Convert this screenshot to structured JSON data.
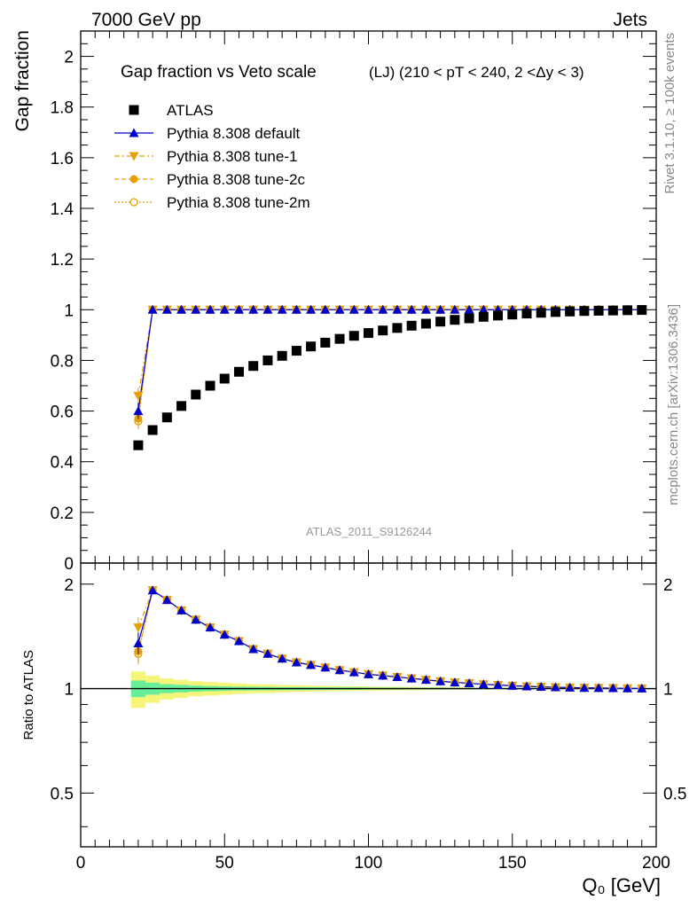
{
  "header": {
    "left": "7000 GeV pp",
    "right": "Jets"
  },
  "side_labels": {
    "rivet": "Rivet 3.1.10, ≥ 100k events",
    "mcplots": "mcplots.cern.ch [arXiv:1306.3436]"
  },
  "colors": {
    "data": "#000000",
    "default": "#0000cc",
    "tune": "#e69f00",
    "band_inner": "#66ee99",
    "band_outer": "#f5f57a"
  },
  "chart_data": [
    {
      "type": "scatter",
      "title": "Gap fraction vs Veto scale",
      "subtitle": "(LJ) (210 < pT < 240, 2 <Δy < 3)",
      "ylabel": "Gap fraction",
      "xlim": [
        0,
        200
      ],
      "ylim": [
        0,
        2.1
      ],
      "yticks": [
        "0",
        "0.2",
        "0.4",
        "0.6",
        "0.8",
        "1",
        "1.2",
        "1.4",
        "1.6",
        "1.8",
        "2"
      ],
      "watermark": "ATLAS_2011_S9126244",
      "x": [
        20,
        25,
        30,
        35,
        40,
        45,
        50,
        55,
        60,
        65,
        70,
        75,
        80,
        85,
        90,
        95,
        100,
        105,
        110,
        115,
        120,
        125,
        130,
        135,
        140,
        145,
        150,
        155,
        160,
        165,
        170,
        175,
        180,
        185,
        190,
        195
      ],
      "series": [
        {
          "name": "ATLAS",
          "key": "atlas",
          "values": [
            0.465,
            0.525,
            0.575,
            0.62,
            0.665,
            0.7,
            0.728,
            0.755,
            0.778,
            0.8,
            0.818,
            0.838,
            0.855,
            0.87,
            0.885,
            0.897,
            0.908,
            0.918,
            0.928,
            0.937,
            0.945,
            0.953,
            0.96,
            0.966,
            0.972,
            0.977,
            0.981,
            0.985,
            0.988,
            0.991,
            0.993,
            0.995,
            0.996,
            0.997,
            0.998,
            0.999
          ]
        },
        {
          "name": "Pythia 8.308 default",
          "key": "default",
          "values": [
            0.6,
            1.0,
            1.0,
            1.0,
            1.0,
            1.0,
            1.0,
            1.0,
            1.0,
            1.0,
            1.0,
            1.0,
            1.0,
            1.0,
            1.0,
            1.0,
            1.0,
            1.0,
            1.0,
            1.0,
            1.0,
            1.0,
            1.0,
            1.0,
            1.0,
            1.0,
            1.0,
            1.0,
            1.0,
            1.0,
            1.0,
            1.0,
            1.0,
            1.0,
            1.0,
            1.0
          ]
        },
        {
          "name": "Pythia 8.308 tune-1",
          "key": "tune1",
          "values": [
            0.66,
            1.0,
            1.0,
            1.0,
            1.0,
            1.0,
            1.0,
            1.0,
            1.0,
            1.0,
            1.0,
            1.0,
            1.0,
            1.0,
            1.0,
            1.0,
            1.0,
            1.0,
            1.0,
            1.0,
            1.0,
            1.0,
            1.0,
            1.0,
            1.0,
            1.0,
            1.0,
            1.0,
            1.0,
            1.0,
            1.0,
            1.0,
            1.0,
            1.0,
            1.0,
            1.0
          ]
        },
        {
          "name": "Pythia 8.308 tune-2c",
          "key": "tune2c",
          "values": [
            0.57,
            1.0,
            1.0,
            1.0,
            1.0,
            1.0,
            1.0,
            1.0,
            1.0,
            1.0,
            1.0,
            1.0,
            1.0,
            1.0,
            1.0,
            1.0,
            1.0,
            1.0,
            1.0,
            1.0,
            1.0,
            1.0,
            1.0,
            1.0,
            1.0,
            1.0,
            1.0,
            1.0,
            1.0,
            1.0,
            1.0,
            1.0,
            1.0,
            1.0,
            1.0,
            1.0
          ]
        },
        {
          "name": "Pythia 8.308 tune-2m",
          "key": "tune2m",
          "values": [
            0.56,
            1.0,
            1.0,
            1.0,
            1.0,
            1.0,
            1.0,
            1.0,
            1.0,
            1.0,
            1.0,
            1.0,
            1.0,
            1.0,
            1.0,
            1.0,
            1.0,
            1.0,
            1.0,
            1.0,
            1.0,
            1.0,
            1.0,
            1.0,
            1.0,
            1.0,
            1.0,
            1.0,
            1.0,
            1.0,
            1.0,
            1.0,
            1.0,
            1.0,
            1.0,
            1.0
          ]
        }
      ],
      "legend_position": "top-left"
    },
    {
      "type": "scatter",
      "ylabel": "Ratio to ATLAS",
      "xlabel": "Q₀ [GeV]",
      "xlim": [
        0,
        200
      ],
      "ylim": [
        0.35,
        2.3
      ],
      "yscale": "log",
      "yticks": [
        "0.5",
        "1",
        "2"
      ],
      "xticks": [
        "0",
        "50",
        "100",
        "150",
        "200"
      ],
      "reference_line": 1,
      "band_inner": [
        0.055,
        0.04,
        0.03,
        0.025,
        0.02,
        0.017,
        0.015,
        0.013,
        0.012,
        0.011,
        0.01,
        0.01,
        0.009,
        0.009,
        0.008,
        0.008,
        0.007,
        0.007,
        0.007,
        0.006,
        0.006,
        0.006,
        0.005,
        0.005,
        0.005,
        0.004,
        0.004,
        0.004,
        0.004,
        0.003,
        0.003,
        0.003,
        0.003,
        0.003,
        0.003,
        0.003
      ],
      "band_outer": [
        0.12,
        0.09,
        0.07,
        0.06,
        0.05,
        0.045,
        0.04,
        0.035,
        0.03,
        0.028,
        0.025,
        0.022,
        0.02,
        0.018,
        0.017,
        0.016,
        0.014,
        0.013,
        0.012,
        0.011,
        0.01,
        0.009,
        0.008,
        0.008,
        0.007,
        0.006,
        0.006,
        0.005,
        0.005,
        0.005,
        0.004,
        0.004,
        0.004,
        0.004,
        0.003,
        0.003
      ],
      "series": [
        {
          "name": "Pythia 8.308 default",
          "key": "default",
          "values": [
            1.35,
            1.92,
            1.8,
            1.68,
            1.58,
            1.5,
            1.43,
            1.37,
            1.3,
            1.26,
            1.22,
            1.19,
            1.17,
            1.15,
            1.13,
            1.115,
            1.1,
            1.09,
            1.08,
            1.07,
            1.06,
            1.05,
            1.042,
            1.036,
            1.029,
            1.024,
            1.019,
            1.015,
            1.012,
            1.009,
            1.007,
            1.005,
            1.004,
            1.003,
            1.002,
            1.001
          ]
        },
        {
          "name": "Pythia 8.308 tune-1",
          "key": "tune1",
          "values": [
            1.5,
            1.92,
            1.8,
            1.68,
            1.58,
            1.5,
            1.43,
            1.37,
            1.3,
            1.26,
            1.22,
            1.19,
            1.17,
            1.15,
            1.13,
            1.115,
            1.1,
            1.09,
            1.08,
            1.07,
            1.06,
            1.05,
            1.042,
            1.036,
            1.029,
            1.024,
            1.019,
            1.015,
            1.012,
            1.009,
            1.007,
            1.005,
            1.004,
            1.003,
            1.002,
            1.001
          ]
        },
        {
          "name": "Pythia 8.308 tune-2c",
          "key": "tune2c",
          "values": [
            1.28,
            1.92,
            1.8,
            1.68,
            1.58,
            1.5,
            1.43,
            1.37,
            1.3,
            1.26,
            1.22,
            1.19,
            1.17,
            1.15,
            1.13,
            1.115,
            1.1,
            1.09,
            1.08,
            1.07,
            1.06,
            1.05,
            1.042,
            1.036,
            1.029,
            1.024,
            1.019,
            1.015,
            1.012,
            1.009,
            1.007,
            1.005,
            1.004,
            1.003,
            1.002,
            1.001
          ]
        },
        {
          "name": "Pythia 8.308 tune-2m",
          "key": "tune2m",
          "values": [
            1.26,
            1.92,
            1.8,
            1.68,
            1.58,
            1.5,
            1.43,
            1.37,
            1.3,
            1.26,
            1.22,
            1.19,
            1.17,
            1.15,
            1.13,
            1.115,
            1.1,
            1.09,
            1.08,
            1.07,
            1.06,
            1.05,
            1.042,
            1.036,
            1.029,
            1.024,
            1.019,
            1.015,
            1.012,
            1.009,
            1.007,
            1.005,
            1.004,
            1.003,
            1.002,
            1.001
          ]
        }
      ]
    }
  ]
}
